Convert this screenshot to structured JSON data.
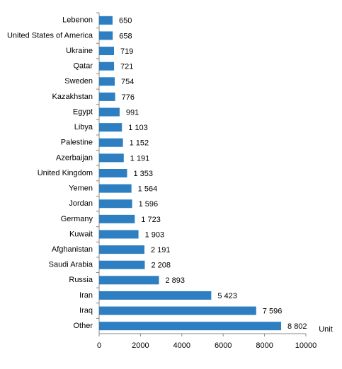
{
  "chart_data": {
    "type": "bar",
    "orientation": "horizontal",
    "x_label": "Unit",
    "categories": [
      "Lebenon",
      "United States of America",
      "Ukraine",
      "Qatar",
      "Sweden",
      "Kazakhstan",
      "Egypt",
      "Libya",
      "Palestine",
      "Azerbaijan",
      "United Kingdom",
      "Yemen",
      "Jordan",
      "Germany",
      "Kuwait",
      "Afghanistan",
      "Saudi Arabia",
      "Russia",
      "Iran",
      "Iraq",
      "Other"
    ],
    "values": [
      650,
      658,
      719,
      721,
      754,
      776,
      991,
      1103,
      1152,
      1191,
      1353,
      1564,
      1596,
      1723,
      1903,
      2191,
      2208,
      2893,
      5423,
      7596,
      8802
    ],
    "value_labels": [
      "650",
      "658",
      "719",
      "721",
      "754",
      "776",
      "991",
      "1 103",
      "1 152",
      "1 191",
      "1 353",
      "1 564",
      "1 596",
      "1 723",
      "1 903",
      "2 191",
      "2 208",
      "2 893",
      "5 423",
      "7 596",
      "8 802"
    ],
    "color": "#2e7fc1",
    "xlim": [
      0,
      10000
    ],
    "xticks": [
      0,
      2000,
      4000,
      6000,
      8000,
      10000
    ]
  }
}
